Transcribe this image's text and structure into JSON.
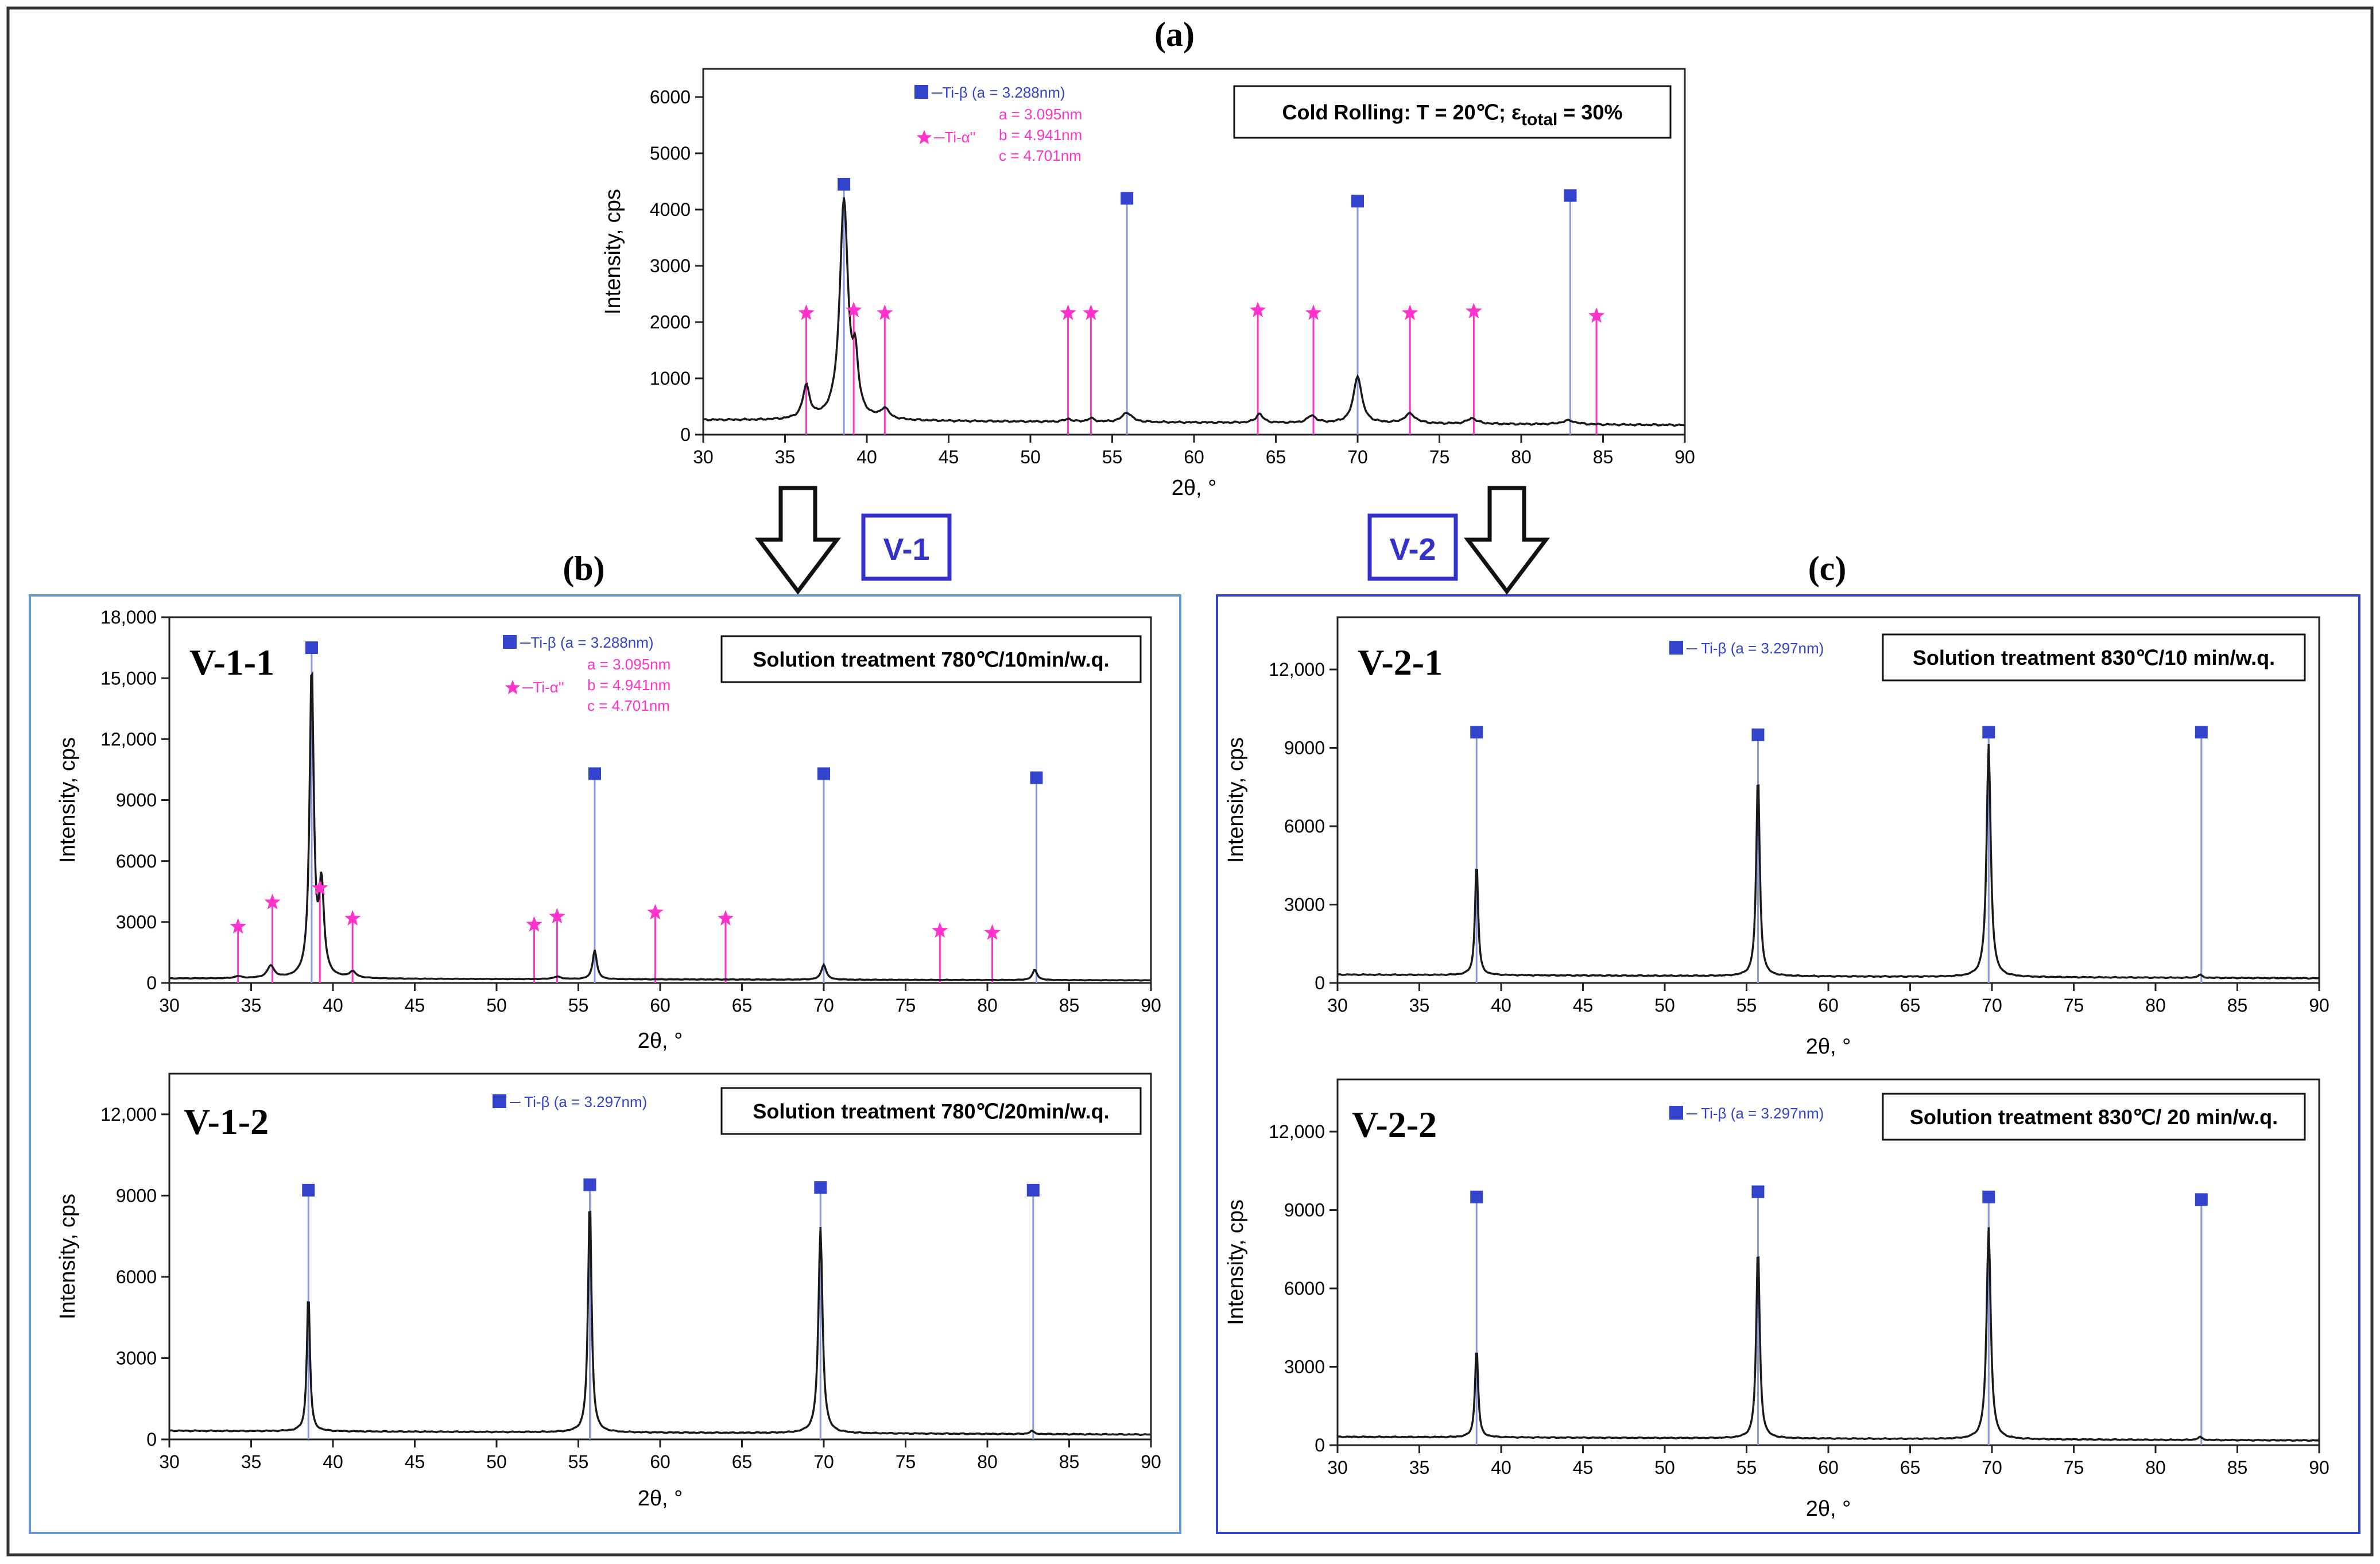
{
  "panel_labels": {
    "a": "(a)",
    "b": "(b)",
    "c": "(c)"
  },
  "arrow_labels": {
    "v1": "V-1",
    "v2": "V-2"
  },
  "colors": {
    "beta": "#3344cc",
    "alpha": "#ff33cc",
    "curve": "#1a1a1a",
    "frame": "#6699cc",
    "label_box": "#3333cc"
  },
  "chart_data": [
    {
      "id": "a",
      "type": "line",
      "xlabel": "2θ, °",
      "ylabel": "Intensity, cps",
      "xlim": [
        30,
        90
      ],
      "ylim": [
        0,
        6500
      ],
      "yticks": [
        0,
        1000,
        2000,
        3000,
        4000,
        5000,
        6000
      ],
      "ytick_labels": [
        "0",
        "1000",
        "2000",
        "3000",
        "4000",
        "5000",
        "6000"
      ],
      "xticks": [
        30,
        35,
        40,
        45,
        50,
        55,
        60,
        65,
        70,
        75,
        80,
        85,
        90
      ],
      "xtick_labels": [
        "30",
        "35",
        "40",
        "45",
        "50",
        "55",
        "60",
        "65",
        "70",
        "75",
        "80",
        "85",
        "90"
      ],
      "sample_label": "",
      "annotation": {
        "main": "Cold Rolling: T = 20℃; ε",
        "sub": "total",
        "tail": " = 30%"
      },
      "legend": {
        "beta": "─Ti-β (a = 3.288nm)",
        "alpha": "─Ti-α''",
        "alpha_params": [
          "a = 3.095nm",
          "b = 4.941nm",
          "c = 4.701nm"
        ]
      },
      "background": {
        "start": 260,
        "end": 170
      },
      "peaks": [
        [
          36.3,
          580,
          0.5
        ],
        [
          38.6,
          3900,
          0.6
        ],
        [
          39.3,
          900,
          0.4
        ],
        [
          41.1,
          180,
          0.6
        ],
        [
          52.3,
          50,
          0.5
        ],
        [
          53.7,
          60,
          0.5
        ],
        [
          55.9,
          170,
          0.7
        ],
        [
          64.0,
          160,
          0.5
        ],
        [
          67.2,
          130,
          0.6
        ],
        [
          70.0,
          840,
          0.6
        ],
        [
          73.2,
          170,
          0.8
        ],
        [
          77.0,
          100,
          0.7
        ],
        [
          82.9,
          70,
          1.0
        ]
      ],
      "beta_lines": [
        [
          38.6,
          4450
        ],
        [
          55.9,
          4200
        ],
        [
          70.0,
          4150
        ],
        [
          83.0,
          4250
        ]
      ],
      "alpha_lines": [
        [
          36.3,
          2100
        ],
        [
          39.2,
          2150
        ],
        [
          41.1,
          2100
        ],
        [
          52.3,
          2100
        ],
        [
          53.7,
          2100
        ],
        [
          63.9,
          2150
        ],
        [
          67.3,
          2100
        ],
        [
          73.2,
          2100
        ],
        [
          77.1,
          2130
        ],
        [
          84.6,
          2050
        ]
      ]
    },
    {
      "id": "b1",
      "type": "line",
      "xlabel": "2θ, °",
      "ylabel": "Intensity, cps",
      "xlim": [
        30,
        90
      ],
      "ylim": [
        0,
        18000
      ],
      "yticks": [
        0,
        3000,
        6000,
        9000,
        12000,
        15000,
        18000
      ],
      "ytick_labels": [
        "0",
        "3000",
        "6000",
        "9000",
        "12,000",
        "15,000",
        "18,000"
      ],
      "xticks": [
        30,
        35,
        40,
        45,
        50,
        55,
        60,
        65,
        70,
        75,
        80,
        85,
        90
      ],
      "xtick_labels": [
        "30",
        "35",
        "40",
        "45",
        "50",
        "55",
        "60",
        "65",
        "70",
        "75",
        "80",
        "85",
        "90"
      ],
      "sample_label": "V-1-1",
      "annotation": {
        "main": "Solution treatment 780℃/10min/w.q.",
        "sub": "",
        "tail": ""
      },
      "legend": {
        "beta": "─Ti-β (a = 3.288nm)",
        "alpha": "─Ti-α''",
        "alpha_params": [
          "a = 3.095nm",
          "b = 4.941nm",
          "c = 4.701nm"
        ]
      },
      "background": {
        "start": 220,
        "end": 130
      },
      "peaks": [
        [
          34.2,
          100,
          0.5
        ],
        [
          36.2,
          600,
          0.5
        ],
        [
          38.7,
          15300,
          0.3
        ],
        [
          39.3,
          4400,
          0.35
        ],
        [
          41.2,
          300,
          0.5
        ],
        [
          53.7,
          120,
          0.6
        ],
        [
          56.0,
          1450,
          0.3
        ],
        [
          70.0,
          750,
          0.35
        ],
        [
          82.9,
          500,
          0.35
        ]
      ],
      "beta_lines": [
        [
          38.7,
          16500
        ],
        [
          56.0,
          10300
        ],
        [
          70.0,
          10300
        ],
        [
          83.0,
          10100
        ]
      ],
      "alpha_lines": [
        [
          34.2,
          2600
        ],
        [
          36.3,
          3800
        ],
        [
          39.2,
          4500
        ],
        [
          41.2,
          3000
        ],
        [
          52.3,
          2700
        ],
        [
          53.7,
          3100
        ],
        [
          59.7,
          3300
        ],
        [
          64.0,
          3000
        ],
        [
          77.1,
          2400
        ],
        [
          80.3,
          2300
        ]
      ]
    },
    {
      "id": "b2",
      "type": "line",
      "xlabel": "2θ, °",
      "ylabel": "Intensity, cps",
      "xlim": [
        30,
        90
      ],
      "ylim": [
        0,
        13500
      ],
      "yticks": [
        0,
        3000,
        6000,
        9000,
        12000
      ],
      "ytick_labels": [
        "0",
        "3000",
        "6000",
        "9000",
        "12,000"
      ],
      "xticks": [
        30,
        35,
        40,
        45,
        50,
        55,
        60,
        65,
        70,
        75,
        80,
        85,
        90
      ],
      "xtick_labels": [
        "30",
        "35",
        "40",
        "45",
        "50",
        "55",
        "60",
        "65",
        "70",
        "75",
        "80",
        "85",
        "90"
      ],
      "sample_label": "V-1-2",
      "annotation": {
        "main": "Solution treatment 780℃/20min/w.q.",
        "sub": "",
        "tail": ""
      },
      "legend": {
        "beta": "─ Ti-β (a = 3.297nm)",
        "alpha": "",
        "alpha_params": []
      },
      "background": {
        "start": 320,
        "end": 180
      },
      "peaks": [
        [
          38.5,
          5200,
          0.22
        ],
        [
          55.7,
          8700,
          0.25
        ],
        [
          69.8,
          7600,
          0.3
        ],
        [
          82.7,
          120,
          0.3
        ]
      ],
      "beta_lines": [
        [
          38.5,
          9200
        ],
        [
          55.7,
          9400
        ],
        [
          69.8,
          9300
        ],
        [
          82.8,
          9200
        ]
      ],
      "alpha_lines": []
    },
    {
      "id": "c1",
      "type": "line",
      "xlabel": "2θ, °",
      "ylabel": "Intensity, cps",
      "xlim": [
        30,
        90
      ],
      "ylim": [
        0,
        14000
      ],
      "yticks": [
        0,
        3000,
        6000,
        9000,
        12000
      ],
      "ytick_labels": [
        "0",
        "3000",
        "6000",
        "9000",
        "12,000"
      ],
      "xticks": [
        30,
        35,
        40,
        45,
        50,
        55,
        60,
        65,
        70,
        75,
        80,
        85,
        90
      ],
      "xtick_labels": [
        "30",
        "35",
        "40",
        "45",
        "50",
        "55",
        "60",
        "65",
        "70",
        "75",
        "80",
        "85",
        "90"
      ],
      "sample_label": "V-2-1",
      "annotation": {
        "main": "Solution treatment 830℃/10 min/w.q.",
        "sub": "",
        "tail": ""
      },
      "legend": {
        "beta": "─ Ti-β (a = 3.297nm)",
        "alpha": "",
        "alpha_params": []
      },
      "background": {
        "start": 320,
        "end": 180
      },
      "peaks": [
        [
          38.5,
          4400,
          0.22
        ],
        [
          55.7,
          7800,
          0.25
        ],
        [
          69.8,
          8900,
          0.3
        ],
        [
          82.7,
          120,
          0.3
        ]
      ],
      "beta_lines": [
        [
          38.5,
          9600
        ],
        [
          55.7,
          9500
        ],
        [
          69.8,
          9600
        ],
        [
          82.8,
          9600
        ]
      ],
      "alpha_lines": []
    },
    {
      "id": "c2",
      "type": "line",
      "xlabel": "2θ, °",
      "ylabel": "Intensity, cps",
      "xlim": [
        30,
        90
      ],
      "ylim": [
        0,
        14000
      ],
      "yticks": [
        0,
        3000,
        6000,
        9000,
        12000
      ],
      "ytick_labels": [
        "0",
        "3000",
        "6000",
        "9000",
        "12,000"
      ],
      "xticks": [
        30,
        35,
        40,
        45,
        50,
        55,
        60,
        65,
        70,
        75,
        80,
        85,
        90
      ],
      "xtick_labels": [
        "30",
        "35",
        "40",
        "45",
        "50",
        "55",
        "60",
        "65",
        "70",
        "75",
        "80",
        "85",
        "90"
      ],
      "sample_label": "V-2-2",
      "annotation": {
        "main": "Solution treatment 830℃/ 20 min/w.q.",
        "sub": "",
        "tail": ""
      },
      "legend": {
        "beta": "─ Ti-β (a = 3.297nm)",
        "alpha": "",
        "alpha_params": []
      },
      "background": {
        "start": 320,
        "end": 180
      },
      "peaks": [
        [
          38.5,
          3500,
          0.22
        ],
        [
          55.7,
          7400,
          0.25
        ],
        [
          69.8,
          8100,
          0.3
        ],
        [
          82.7,
          120,
          0.3
        ]
      ],
      "beta_lines": [
        [
          38.5,
          9500
        ],
        [
          55.7,
          9700
        ],
        [
          69.8,
          9500
        ],
        [
          82.8,
          9400
        ]
      ],
      "alpha_lines": []
    }
  ]
}
